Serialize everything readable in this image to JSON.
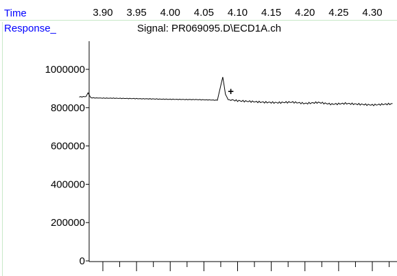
{
  "header": {
    "time_label": "Time",
    "time_ticks": [
      "3.90",
      "3.95",
      "4.00",
      "4.05",
      "4.10",
      "4.15",
      "4.20",
      "4.25",
      "4.30"
    ],
    "response_label": "Response_",
    "signal_title": "Signal: PR069095.D\\ECD1A.ch"
  },
  "colors": {
    "label": "#0000ff",
    "trace": "#000000",
    "rule": "#c7e8c7"
  },
  "chart_data": {
    "type": "line",
    "title": "Signal: PR069095.D\\ECD1A.ch",
    "xlabel": "Time",
    "ylabel": "Response_",
    "xlim": [
      3.865,
      4.33
    ],
    "ylim": [
      0,
      1100000
    ],
    "yticks": [
      0,
      200000,
      400000,
      600000,
      800000,
      1000000
    ],
    "ytick_labels": [
      "0",
      "200000",
      "400000",
      "600000",
      "800000",
      "1000000"
    ],
    "xtick_values": [
      3.9,
      3.95,
      4.0,
      4.05,
      4.1,
      4.15,
      4.2,
      4.25,
      4.3
    ],
    "grid": false,
    "series": [
      {
        "x": [
          3.865,
          3.875,
          3.878,
          3.882,
          3.886,
          3.895,
          3.92,
          3.95,
          3.98,
          4.01,
          4.04,
          4.06,
          4.07,
          4.074,
          4.078,
          4.082,
          4.086,
          4.09,
          4.1,
          4.12,
          4.14,
          4.16,
          4.18,
          4.2,
          4.22,
          4.24,
          4.26,
          4.28,
          4.3,
          4.33
        ],
        "y": [
          856000,
          858000,
          878000,
          852000,
          851000,
          850000,
          849000,
          847000,
          845000,
          843000,
          842000,
          840000,
          839000,
          900000,
          960000,
          870000,
          842000,
          841000,
          836000,
          832000,
          828000,
          826000,
          829000,
          822000,
          827000,
          818000,
          822000,
          818000,
          814000,
          820000
        ]
      }
    ],
    "annotations": [
      {
        "text": "+",
        "x": 4.09,
        "y": 868000
      }
    ]
  }
}
